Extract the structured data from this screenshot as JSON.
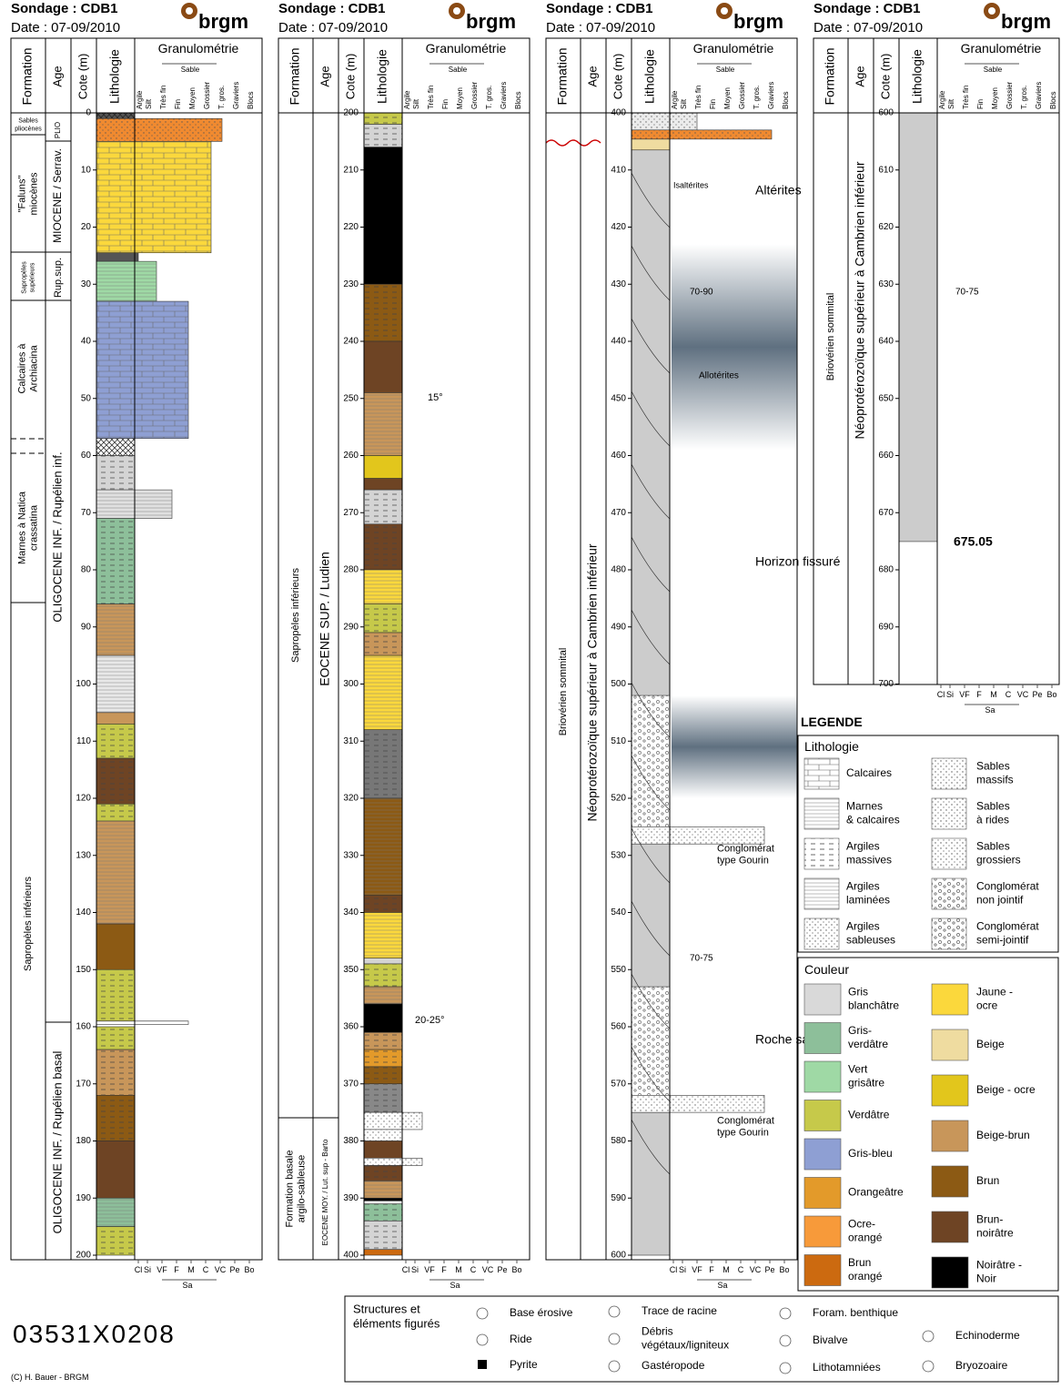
{
  "header": {
    "title": "Sondage : CDB1",
    "date": "Date : 07-09/2010",
    "logo": "brgm"
  },
  "columns": {
    "formation": "Formation",
    "age": "Age",
    "depth": "Cote (m)",
    "lithology": "Lithologie",
    "granulometry": "Granulométrie",
    "sand": "Sable",
    "grain_sizes": [
      "Argile",
      "Silt",
      "Très fin",
      "Fin",
      "Moyen",
      "Grossier",
      "T. gros.",
      "Graviers",
      "Blocs"
    ],
    "footer_codes": [
      "Cl",
      "Si",
      "VF",
      "F",
      "M",
      "C",
      "VC",
      "Pe",
      "Bo"
    ],
    "footer_sand": "Sa"
  },
  "panels": [
    {
      "depth_ticks": [
        0,
        10,
        20,
        30,
        40,
        50,
        60,
        70,
        80,
        90,
        100,
        110,
        120,
        130,
        140,
        150,
        160,
        170,
        180,
        190,
        200
      ],
      "formations": [
        [
          "Sables",
          "pliocènes"
        ],
        [
          "\"Faluns\"",
          "miocènes"
        ],
        [
          "Sapropèles",
          "supérieurs"
        ],
        [
          "Calcaires à",
          "Archiacina"
        ],
        [
          "Marnes à Natica",
          "crassatina"
        ],
        [
          "Sapropèles inférieurs"
        ]
      ],
      "ages": [
        [
          "PLIO"
        ],
        [
          "MIOCENE / Serrav."
        ],
        [
          "Rup.sup."
        ],
        [
          "OLIGOCENE INF. / Rupélien inf."
        ],
        [
          "OLIGOCENE INF. / Rupélien basal"
        ]
      ],
      "annotations": []
    },
    {
      "depth_ticks": [
        200,
        210,
        220,
        230,
        240,
        250,
        260,
        270,
        280,
        290,
        300,
        310,
        320,
        330,
        340,
        350,
        360,
        370,
        380,
        390,
        400
      ],
      "formations": [
        [
          "Sapropèles inférieurs"
        ],
        [
          "Formation basale",
          "argilo-sableuse"
        ]
      ],
      "ages": [
        [
          "EOCENE SUP. / Ludien"
        ],
        [
          "EOCENE MOY. / Lut. sup - Barto"
        ]
      ],
      "annotations": [
        [
          "15°"
        ],
        [
          "20-25°"
        ]
      ]
    },
    {
      "depth_ticks": [
        400,
        410,
        420,
        430,
        440,
        450,
        460,
        470,
        480,
        490,
        500,
        510,
        520,
        530,
        540,
        550,
        560,
        570,
        580,
        590,
        600
      ],
      "formations": [
        [
          "Briovérien sommital"
        ]
      ],
      "ages": [
        [
          "Néoprotérozoïque supérieur à Cambrien inférieur"
        ]
      ],
      "annotations": [
        [
          "Allotérites"
        ],
        [
          "Isaltérites"
        ],
        [
          "Altérites"
        ],
        [
          "70-90"
        ],
        [
          "Horizon fissuré"
        ],
        [
          "Conglomérat",
          "type Gourin"
        ],
        [
          "70-75"
        ],
        [
          "Roche saine"
        ],
        [
          "Conglomérat",
          "type Gourin"
        ]
      ]
    },
    {
      "depth_ticks": [
        600,
        610,
        620,
        630,
        640,
        650,
        660,
        670,
        680,
        690,
        700
      ],
      "formations": [
        [
          "Briovérien sommital"
        ]
      ],
      "ages": [
        [
          "Néoprotérozoïque supérieur à Cambrien inférieur"
        ]
      ],
      "annotations": [
        [
          "70-75"
        ],
        [
          "675.05"
        ]
      ]
    }
  ],
  "legend": {
    "title": "LEGENDE",
    "lithology": {
      "title": "Lithologie",
      "items": [
        [
          "Calcaires"
        ],
        [
          "Marnes",
          "& calcaires"
        ],
        [
          "Argiles",
          "massives"
        ],
        [
          "Argiles",
          "laminées"
        ],
        [
          "Argiles",
          "sableuses"
        ],
        [
          "Sables",
          "massifs"
        ],
        [
          "Sables",
          "à rides"
        ],
        [
          "Sables",
          "grossiers"
        ],
        [
          "Conglomérat",
          "non jointif"
        ],
        [
          "Conglomérat",
          "semi-jointif"
        ]
      ]
    },
    "color": {
      "title": "Couleur",
      "items": [
        {
          "label": [
            "Gris",
            "blanchâtre"
          ],
          "color": "#d9d9d9"
        },
        {
          "label": [
            "Gris-",
            "verdâtre"
          ],
          "color": "#8dbf9a"
        },
        {
          "label": [
            "Vert",
            "grisâtre"
          ],
          "color": "#9fd9a5"
        },
        {
          "label": [
            "Verdâtre"
          ],
          "color": "#c6c94a"
        },
        {
          "label": [
            "Gris-bleu"
          ],
          "color": "#8e9fd3"
        },
        {
          "label": [
            "Orangeâtre"
          ],
          "color": "#e39a2a"
        },
        {
          "label": [
            "Ocre-",
            "orangé"
          ],
          "color": "#f79a3a"
        },
        {
          "label": [
            "Brun",
            "orangé"
          ],
          "color": "#cc6a10"
        },
        {
          "label": [
            "Jaune -",
            "ocre"
          ],
          "color": "#fbd83c"
        },
        {
          "label": [
            "Beige"
          ],
          "color": "#efdca0"
        },
        {
          "label": [
            "Beige - ocre"
          ],
          "color": "#e2c61c"
        },
        {
          "label": [
            "Beige-brun"
          ],
          "color": "#c8965a"
        },
        {
          "label": [
            "Brun"
          ],
          "color": "#8c5a14"
        },
        {
          "label": [
            "Brun-",
            "noirâtre"
          ],
          "color": "#6e4424"
        },
        {
          "label": [
            "Noirâtre -",
            "Noir"
          ],
          "color": "#000000"
        }
      ]
    },
    "structures": {
      "title": [
        "Structures et",
        "éléments figurés"
      ],
      "items": [
        [
          "Base érosive"
        ],
        [
          "Ride"
        ],
        [
          "Pyrite"
        ],
        [
          "Trace de racine"
        ],
        [
          "Débris",
          "végétaux/ligniteux"
        ],
        [
          "Gastéropode"
        ],
        [
          "Foram. benthique"
        ],
        [
          "Bivalve"
        ],
        [
          "Lithotamniées"
        ],
        [
          "Echinoderme"
        ],
        [
          "Bryozoaire"
        ]
      ]
    }
  },
  "borehole_code": "03531X0208",
  "credit": "(C) H. Bauer - BRGM"
}
